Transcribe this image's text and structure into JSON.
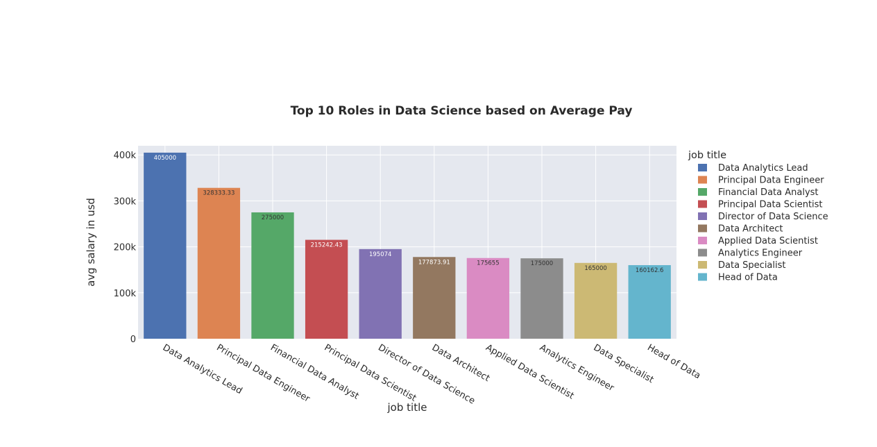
{
  "chart_data": {
    "type": "bar",
    "title": "Top 10 Roles in Data Science based on Average Pay",
    "xlabel": "job title",
    "ylabel": "avg salary in usd",
    "legend_title": "job title",
    "legend_position": "right",
    "grid": true,
    "ylim": [
      0,
      420000
    ],
    "y_ticks": [
      {
        "value": 0,
        "label": "0"
      },
      {
        "value": 100000,
        "label": "100k"
      },
      {
        "value": 200000,
        "label": "200k"
      },
      {
        "value": 300000,
        "label": "300k"
      },
      {
        "value": 400000,
        "label": "400k"
      }
    ],
    "categories": [
      "Data Analytics Lead",
      "Principal Data Engineer",
      "Financial Data Analyst",
      "Principal Data Scientist",
      "Director of Data Science",
      "Data Architect",
      "Applied Data Scientist",
      "Analytics Engineer",
      "Data Specialist",
      "Head of Data"
    ],
    "values": [
      405000,
      328333.33,
      275000,
      215242.43,
      195074,
      177873.91,
      175655,
      175000,
      165000,
      160162.6
    ],
    "value_labels": [
      "405000",
      "328333.33",
      "275000",
      "215242.43",
      "195074",
      "177873.91",
      "175655",
      "175000",
      "165000",
      "160162.6"
    ],
    "colors": [
      "#4c72b0",
      "#dd8452",
      "#55a868",
      "#c44e52",
      "#8172b3",
      "#937860",
      "#da8bc3",
      "#8c8c8c",
      "#ccb974",
      "#64b5cd"
    ],
    "label_colors": [
      "#ffffff",
      "#333333",
      "#333333",
      "#ffffff",
      "#ffffff",
      "#ffffff",
      "#333333",
      "#333333",
      "#333333",
      "#333333"
    ],
    "plot_background": "#e5e8ef"
  }
}
